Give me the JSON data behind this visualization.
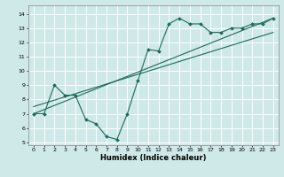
{
  "xlabel": "Humidex (Indice chaleur)",
  "bg_color": "#cfe8e8",
  "grid_color": "#ffffff",
  "line_color": "#1a6b5a",
  "xlim": [
    -0.5,
    23.5
  ],
  "ylim": [
    4.8,
    14.6
  ],
  "yticks": [
    5,
    6,
    7,
    8,
    9,
    10,
    11,
    12,
    13,
    14
  ],
  "xticks": [
    0,
    1,
    2,
    3,
    4,
    5,
    6,
    7,
    8,
    9,
    10,
    11,
    12,
    13,
    14,
    15,
    16,
    17,
    18,
    19,
    20,
    21,
    22,
    23
  ],
  "line1_x": [
    0,
    1,
    2,
    3,
    4,
    5,
    6,
    7,
    8,
    9,
    10,
    11,
    12,
    13,
    14,
    15,
    16,
    17,
    18,
    19,
    20,
    21,
    22,
    23
  ],
  "line1_y": [
    7.0,
    7.0,
    9.0,
    8.3,
    8.3,
    6.6,
    6.3,
    5.4,
    5.2,
    7.0,
    9.3,
    11.5,
    11.4,
    13.3,
    13.7,
    13.3,
    13.3,
    12.7,
    12.7,
    13.0,
    13.0,
    13.3,
    13.3,
    13.7
  ],
  "line2_x": [
    0,
    23
  ],
  "line2_y": [
    7.0,
    13.7
  ],
  "line3_x": [
    0,
    23
  ],
  "line3_y": [
    7.5,
    12.7
  ],
  "tick_fontsize": 4.5,
  "xlabel_fontsize": 6.0
}
